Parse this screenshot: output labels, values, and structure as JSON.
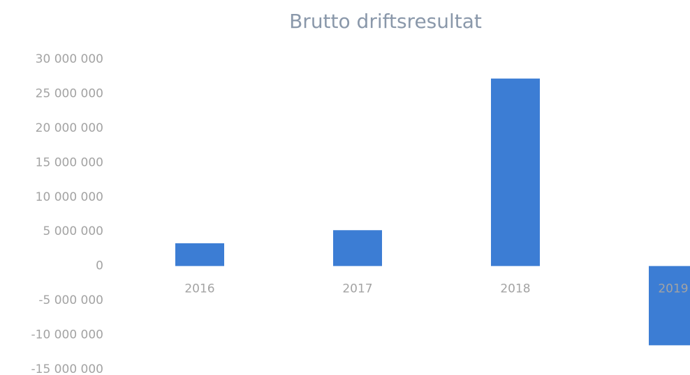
{
  "chart_data": {
    "type": "bar",
    "title": "Brutto driftsresultat",
    "categories": [
      "2016",
      "2017",
      "2018",
      "2019"
    ],
    "values": [
      3300000,
      5200000,
      27200000,
      -11500000
    ],
    "color": "#3c7dd4",
    "ylim": [
      -15000000,
      30000000
    ],
    "yticks": [
      {
        "value": -15000000,
        "label": "-15 000 000"
      },
      {
        "value": -10000000,
        "label": "-10 000 000"
      },
      {
        "value": -5000000,
        "label": "-5 000 000"
      },
      0,
      {
        "value": 5000000,
        "label": "5 000 000"
      },
      {
        "value": 10000000,
        "label": "10 000 000"
      },
      {
        "value": 15000000,
        "label": "15 000 000"
      },
      {
        "value": 20000000,
        "label": "20 000 000"
      },
      {
        "value": 25000000,
        "label": "25 000 000"
      },
      {
        "value": 30000000,
        "label": "30 000 000"
      }
    ],
    "grid": false
  }
}
